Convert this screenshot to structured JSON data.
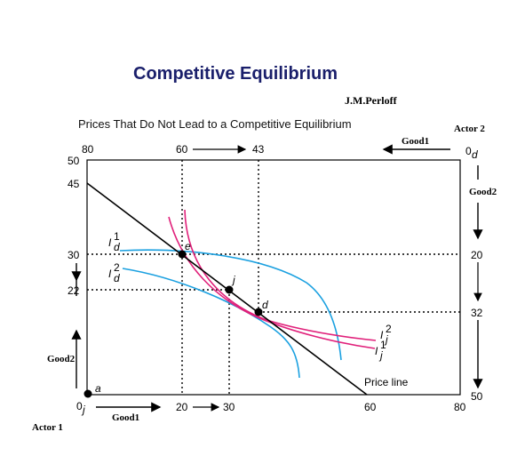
{
  "title": "Competitive Equilibrium",
  "author": "J.M.Perloff",
  "subtitle": "Prices That Do Not Lead to a Competitive Equilibrium",
  "actors": {
    "actor1": "Actor 1",
    "actor2": "Actor 2"
  },
  "axes": {
    "good1_bottom": "Good1",
    "good2_left": "Good2",
    "good1_top": "Good1",
    "good2_right": "Good2",
    "origin_j": "0j",
    "origin_d": "0d"
  },
  "ticks": {
    "bottom": [
      "20",
      "30",
      "60",
      "80"
    ],
    "top": [
      "80",
      "60",
      "43"
    ],
    "left": [
      "50",
      "45",
      "30",
      "22"
    ],
    "right": [
      "20",
      "32",
      "50"
    ]
  },
  "points": {
    "a": "a",
    "e": "e",
    "j": "j",
    "d": "d"
  },
  "curve_labels": {
    "Id1": "I1d",
    "Id2": "I2d",
    "Ij1": "I1j",
    "Ij2": "I2j"
  },
  "price_line_label": "Price line",
  "colors": {
    "indiff_d": "#1aa0e0",
    "indiff_j": "#e0207a",
    "price_line": "#000000",
    "title": "#1a1f6b"
  },
  "chart_data": {
    "type": "edgeworth_box",
    "box": {
      "good1_total": 80,
      "good2_total": 50
    },
    "actor1_origin_axes": {
      "good1": [
        0,
        80
      ],
      "good2": [
        0,
        50
      ]
    },
    "actor2_origin_axes": {
      "good1": [
        80,
        0
      ],
      "good2": [
        0,
        50
      ]
    },
    "price_line": [
      [
        0,
        45
      ],
      [
        60,
        0
      ]
    ],
    "points": [
      {
        "name": "a",
        "good1": 0,
        "good2": 0
      },
      {
        "name": "e",
        "good1": 20,
        "good2": 30
      },
      {
        "name": "j",
        "good1": 30,
        "good2": 22
      },
      {
        "name": "d",
        "good1": 37,
        "good2": 18
      }
    ],
    "dashed_guides": [
      {
        "from": "e",
        "good1": 20,
        "good2": 30,
        "top_tick": "60",
        "right_tick": "20"
      },
      {
        "from": "j",
        "good1": 30,
        "good2": 22
      },
      {
        "from": "d",
        "top_tick": "43",
        "right_tick": "32"
      }
    ]
  }
}
